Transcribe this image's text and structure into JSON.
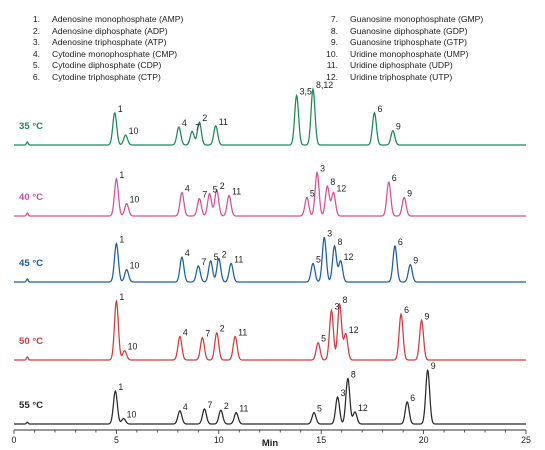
{
  "legend": {
    "items": [
      {
        "num": "1.",
        "label": "Adenosine monophosphate (AMP)"
      },
      {
        "num": "2.",
        "label": "Adenosine diphosphate (ADP)"
      },
      {
        "num": "3.",
        "label": "Adenosine triphosphate (ATP)"
      },
      {
        "num": "4.",
        "label": "Cytodine monophosphate (CMP)"
      },
      {
        "num": "5.",
        "label": "Cytodine diphosphate (CDP)"
      },
      {
        "num": "6.",
        "label": "Cytodine triphosphate (CTP)"
      },
      {
        "num": "7.",
        "label": "Guanosine monophosphate (GMP)"
      },
      {
        "num": "8.",
        "label": "Guanosine diphosphate (GDP)"
      },
      {
        "num": "9.",
        "label": "Guanosine triphosphate (GTP)"
      },
      {
        "num": "10.",
        "label": "Uridine monophosphate (UMP)"
      },
      {
        "num": "11.",
        "label": "Uridine diphosphate (UDP)"
      },
      {
        "num": "12.",
        "label": "Uridine triphosphate (UTP)"
      }
    ]
  },
  "chart_data": {
    "type": "line",
    "xlabel": "Min",
    "xlim": [
      0,
      25
    ],
    "xticks": [
      0,
      5,
      10,
      15,
      20,
      25
    ],
    "grid": false,
    "series": [
      {
        "name": "35 °C",
        "color": "#1a8a5a",
        "void_peak": {
          "x": 0.65,
          "h": 0.05
        },
        "peaks": [
          {
            "x": 4.92,
            "h": 0.52,
            "label": "1"
          },
          {
            "x": 5.45,
            "h": 0.16,
            "label": "10"
          },
          {
            "x": 8.05,
            "h": 0.29,
            "label": "4"
          },
          {
            "x": 8.7,
            "h": 0.22,
            "label": "7"
          },
          {
            "x": 9.05,
            "h": 0.37,
            "label": "2"
          },
          {
            "x": 9.85,
            "h": 0.31,
            "label": "11"
          },
          {
            "x": 13.8,
            "h": 0.8,
            "label": "3,5"
          },
          {
            "x": 14.6,
            "h": 0.9,
            "label": "8,12"
          },
          {
            "x": 17.6,
            "h": 0.52,
            "label": "6"
          },
          {
            "x": 18.5,
            "h": 0.23,
            "label": "9"
          }
        ]
      },
      {
        "name": "40 °C",
        "color": "#d64f9a",
        "void_peak": {
          "x": 0.65,
          "h": 0.05
        },
        "peaks": [
          {
            "x": 5.0,
            "h": 0.6,
            "label": "1"
          },
          {
            "x": 5.5,
            "h": 0.2,
            "label": "10"
          },
          {
            "x": 8.2,
            "h": 0.38,
            "label": "4"
          },
          {
            "x": 9.05,
            "h": 0.28,
            "label": "7"
          },
          {
            "x": 9.55,
            "h": 0.36,
            "label": "5"
          },
          {
            "x": 9.9,
            "h": 0.42,
            "label": "2"
          },
          {
            "x": 10.5,
            "h": 0.33,
            "label": "11"
          },
          {
            "x": 14.3,
            "h": 0.3,
            "label": "5"
          },
          {
            "x": 14.8,
            "h": 0.7,
            "label": "3"
          },
          {
            "x": 15.3,
            "h": 0.48,
            "label": "8"
          },
          {
            "x": 15.6,
            "h": 0.38,
            "label": "12"
          },
          {
            "x": 18.3,
            "h": 0.55,
            "label": "6"
          },
          {
            "x": 19.05,
            "h": 0.3,
            "label": "9"
          }
        ]
      },
      {
        "name": "45 °C",
        "color": "#1a5fa8",
        "void_peak": {
          "x": 0.65,
          "h": 0.05
        },
        "peaks": [
          {
            "x": 5.0,
            "h": 0.62,
            "label": "1"
          },
          {
            "x": 5.5,
            "h": 0.2,
            "label": "10"
          },
          {
            "x": 8.2,
            "h": 0.4,
            "label": "4"
          },
          {
            "x": 9.0,
            "h": 0.26,
            "label": "7"
          },
          {
            "x": 9.6,
            "h": 0.34,
            "label": "5"
          },
          {
            "x": 10.0,
            "h": 0.38,
            "label": "2"
          },
          {
            "x": 10.6,
            "h": 0.3,
            "label": "11"
          },
          {
            "x": 14.6,
            "h": 0.3,
            "label": "5"
          },
          {
            "x": 15.15,
            "h": 0.72,
            "label": "3"
          },
          {
            "x": 15.65,
            "h": 0.58,
            "label": "8"
          },
          {
            "x": 15.95,
            "h": 0.34,
            "label": "12"
          },
          {
            "x": 18.6,
            "h": 0.58,
            "label": "6"
          },
          {
            "x": 19.35,
            "h": 0.28,
            "label": "9"
          }
        ]
      },
      {
        "name": "50 °C",
        "color": "#d63a3a",
        "void_peak": {
          "x": 0.65,
          "h": 0.05
        },
        "peaks": [
          {
            "x": 5.0,
            "h": 0.95,
            "label": "1"
          },
          {
            "x": 5.4,
            "h": 0.15,
            "label": "10"
          },
          {
            "x": 8.1,
            "h": 0.38,
            "label": "4"
          },
          {
            "x": 9.2,
            "h": 0.36,
            "label": "7"
          },
          {
            "x": 9.9,
            "h": 0.44,
            "label": "2"
          },
          {
            "x": 10.8,
            "h": 0.38,
            "label": "11"
          },
          {
            "x": 14.85,
            "h": 0.28,
            "label": "5"
          },
          {
            "x": 15.5,
            "h": 0.8,
            "label": "3"
          },
          {
            "x": 15.9,
            "h": 0.9,
            "label": "8"
          },
          {
            "x": 16.2,
            "h": 0.42,
            "label": "12"
          },
          {
            "x": 18.9,
            "h": 0.74,
            "label": "6"
          },
          {
            "x": 19.9,
            "h": 0.64,
            "label": "9"
          }
        ]
      },
      {
        "name": "55 °C",
        "color": "#2a2a2a",
        "void_peak": {
          "x": 0.65,
          "h": 0.03
        },
        "peaks": [
          {
            "x": 4.95,
            "h": 0.55,
            "label": "1"
          },
          {
            "x": 5.35,
            "h": 0.09,
            "label": "10"
          },
          {
            "x": 8.1,
            "h": 0.22,
            "label": "4"
          },
          {
            "x": 9.3,
            "h": 0.25,
            "label": "7"
          },
          {
            "x": 10.1,
            "h": 0.23,
            "label": "2"
          },
          {
            "x": 10.85,
            "h": 0.19,
            "label": "11"
          },
          {
            "x": 14.65,
            "h": 0.19,
            "label": "5"
          },
          {
            "x": 15.8,
            "h": 0.45,
            "label": "3"
          },
          {
            "x": 16.3,
            "h": 0.76,
            "label": "8"
          },
          {
            "x": 16.65,
            "h": 0.2,
            "label": "12"
          },
          {
            "x": 19.2,
            "h": 0.37,
            "label": "6"
          },
          {
            "x": 20.2,
            "h": 0.9,
            "label": "9"
          }
        ]
      }
    ]
  }
}
